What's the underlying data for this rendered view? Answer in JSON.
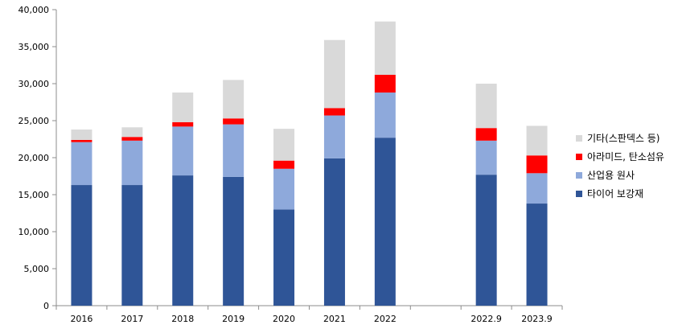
{
  "chart_data": {
    "type": "bar",
    "stacked": true,
    "categories": [
      "2016",
      "2017",
      "2018",
      "2019",
      "2020",
      "2021",
      "2022",
      "",
      "2022.9",
      "2023.9"
    ],
    "series": [
      {
        "name": "타이어 보강재",
        "color": "#2F5597",
        "values": [
          16300,
          16300,
          17600,
          17400,
          13000,
          19900,
          22700,
          null,
          17700,
          13800
        ]
      },
      {
        "name": "산업용 원사",
        "color": "#8EA9DB",
        "values": [
          5800,
          6000,
          6600,
          7100,
          5500,
          5800,
          6100,
          null,
          4600,
          4100
        ]
      },
      {
        "name": "아라미드, 탄소섬유",
        "color": "#FF0000",
        "values": [
          300,
          500,
          600,
          800,
          1100,
          1000,
          2400,
          null,
          1700,
          2400
        ]
      },
      {
        "name": "기타(스판덱스 등)",
        "color": "#D9D9D9",
        "values": [
          1400,
          1300,
          4000,
          5200,
          4300,
          9200,
          7200,
          null,
          6000,
          4000
        ]
      }
    ],
    "ylim": [
      0,
      40000
    ],
    "yticks": [
      "0",
      "5,000",
      "10,000",
      "15,000",
      "20,000",
      "25,000",
      "30,000",
      "35,000",
      "40,000"
    ],
    "grid": false,
    "legend_position": "right"
  }
}
